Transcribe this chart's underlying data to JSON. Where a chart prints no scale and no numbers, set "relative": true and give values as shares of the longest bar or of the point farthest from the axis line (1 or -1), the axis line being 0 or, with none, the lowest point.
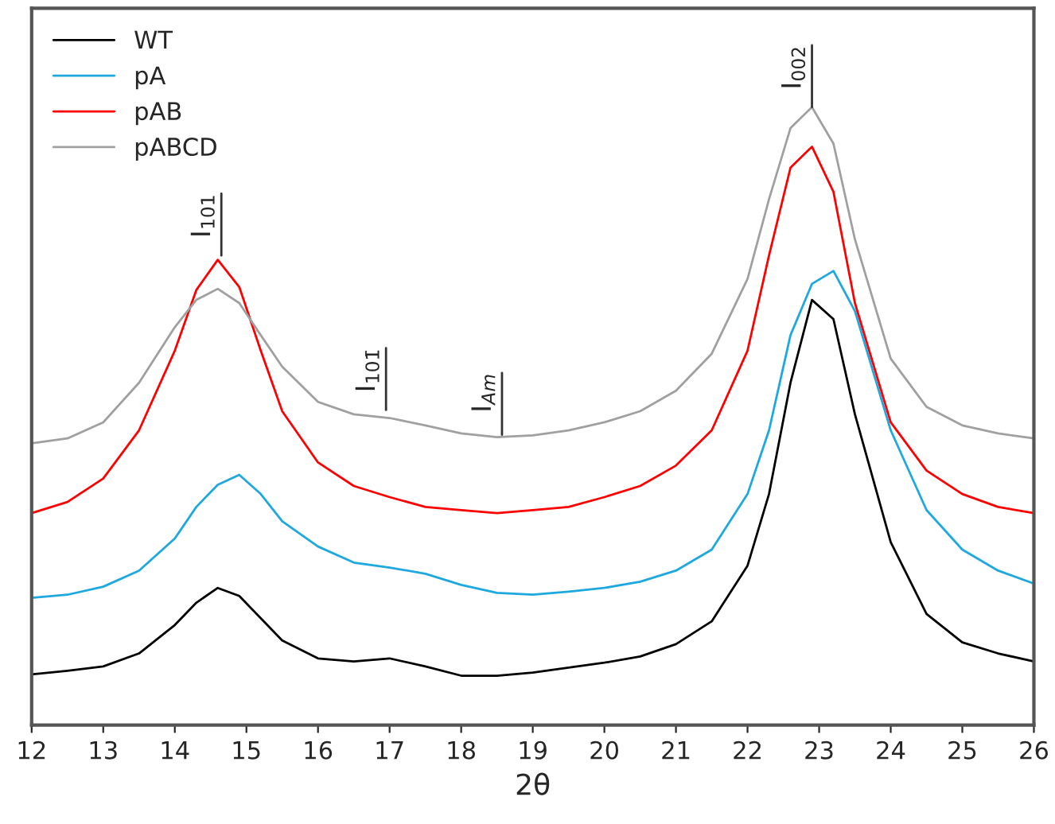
{
  "chart_data": {
    "type": "line",
    "relative": true,
    "xlabel": "2θ",
    "xlim": [
      12,
      26
    ],
    "xticks": [
      12,
      13,
      14,
      15,
      16,
      17,
      18,
      19,
      20,
      21,
      22,
      23,
      24,
      25,
      26
    ],
    "grid": false,
    "legend": "top left",
    "marker": "none",
    "line_style": "solid",
    "tick_labels": "x",
    "x": [
      12,
      12.5,
      13,
      13.5,
      14,
      14.3,
      14.6,
      14.9,
      15.2,
      15.5,
      16,
      16.5,
      17,
      17.5,
      18,
      18.5,
      19,
      19.5,
      20,
      20.5,
      21,
      21.5,
      22,
      22.3,
      22.6,
      22.9,
      23.2,
      23.5,
      24,
      24.5,
      25,
      25.5,
      26
    ],
    "series": [
      {
        "name": "WT",
        "color": "#000000",
        "values": [
          0.082,
          0.088,
          0.095,
          0.116,
          0.162,
          0.198,
          0.222,
          0.209,
          0.173,
          0.137,
          0.108,
          0.103,
          0.108,
          0.095,
          0.08,
          0.08,
          0.085,
          0.093,
          0.101,
          0.111,
          0.131,
          0.168,
          0.258,
          0.374,
          0.554,
          0.688,
          0.657,
          0.503,
          0.296,
          0.18,
          0.134,
          0.116,
          0.103
        ]
      },
      {
        "name": "pA",
        "color": "#1ea8e0",
        "values": [
          0.206,
          0.211,
          0.224,
          0.25,
          0.302,
          0.353,
          0.389,
          0.405,
          0.374,
          0.33,
          0.289,
          0.263,
          0.255,
          0.245,
          0.227,
          0.214,
          0.211,
          0.216,
          0.222,
          0.232,
          0.25,
          0.284,
          0.374,
          0.477,
          0.631,
          0.714,
          0.735,
          0.67,
          0.477,
          0.348,
          0.284,
          0.25,
          0.229
        ]
      },
      {
        "name": "pAB",
        "color": "#ff0000",
        "values": [
          0.343,
          0.361,
          0.399,
          0.477,
          0.606,
          0.704,
          0.753,
          0.709,
          0.606,
          0.508,
          0.425,
          0.387,
          0.369,
          0.353,
          0.348,
          0.343,
          0.348,
          0.353,
          0.369,
          0.387,
          0.42,
          0.477,
          0.606,
          0.76,
          0.902,
          0.936,
          0.863,
          0.683,
          0.49,
          0.412,
          0.374,
          0.353,
          0.343
        ]
      },
      {
        "name": "pABCD",
        "color": "#a0a0a0",
        "values": [
          0.456,
          0.464,
          0.49,
          0.554,
          0.644,
          0.688,
          0.706,
          0.683,
          0.631,
          0.58,
          0.523,
          0.503,
          0.497,
          0.485,
          0.472,
          0.466,
          0.469,
          0.477,
          0.49,
          0.508,
          0.541,
          0.601,
          0.722,
          0.851,
          0.966,
          1.0,
          0.941,
          0.786,
          0.593,
          0.515,
          0.485,
          0.472,
          0.464
        ]
      }
    ],
    "annotations": [
      {
        "text": "I$_{101}$",
        "x": 14.65,
        "y": 0.76
      },
      {
        "text": "I$_{101̄}$",
        "x": 16.95,
        "y": 0.51
      },
      {
        "text": "I$_{Am}$",
        "x": 18.57,
        "y": 0.47
      },
      {
        "text": "I$_{002}$",
        "x": 22.9,
        "y": 1.0
      }
    ]
  }
}
